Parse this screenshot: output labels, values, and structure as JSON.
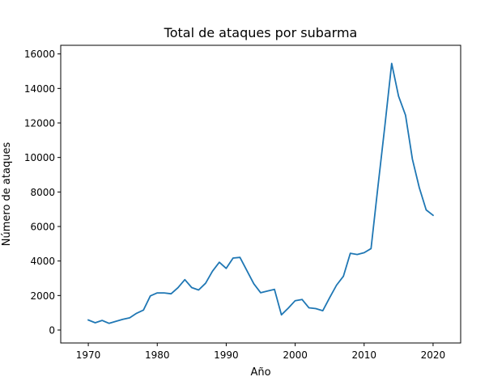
{
  "chart_data": {
    "type": "line",
    "title": "Total de ataques por subarma",
    "xlabel": "Año",
    "ylabel": "Número de ataques",
    "xlim": [
      1966,
      2024
    ],
    "ylim": [
      -750,
      16500
    ],
    "x_ticks": [
      1970,
      1980,
      1990,
      2000,
      2010,
      2020
    ],
    "y_ticks": [
      0,
      2000,
      4000,
      6000,
      8000,
      10000,
      12000,
      14000,
      16000
    ],
    "grid": false,
    "legend": "none",
    "series": [
      {
        "color": "#1f77b4",
        "x": [
          1970,
          1971,
          1972,
          1973,
          1974,
          1975,
          1976,
          1977,
          1978,
          1979,
          1980,
          1981,
          1982,
          1983,
          1984,
          1985,
          1986,
          1987,
          1988,
          1989,
          1990,
          1991,
          1992,
          1994,
          1995,
          1996,
          1997,
          1998,
          1999,
          2000,
          2001,
          2002,
          2003,
          2004,
          2005,
          2006,
          2007,
          2008,
          2009,
          2010,
          2011,
          2012,
          2013,
          2014,
          2015,
          2016,
          2017,
          2018,
          2019,
          2020
        ],
        "values": [
          580,
          420,
          560,
          390,
          500,
          620,
          710,
          970,
          1160,
          1980,
          2150,
          2150,
          2100,
          2450,
          2920,
          2460,
          2320,
          2710,
          3410,
          3930,
          3570,
          4170,
          4210,
          2680,
          2160,
          2260,
          2360,
          880,
          1270,
          1700,
          1770,
          1290,
          1240,
          1120,
          1880,
          2600,
          3120,
          4450,
          4380,
          4480,
          4720,
          8300,
          11800,
          15450,
          13550,
          12450,
          9900,
          8250,
          6960,
          6650
        ]
      }
    ]
  }
}
